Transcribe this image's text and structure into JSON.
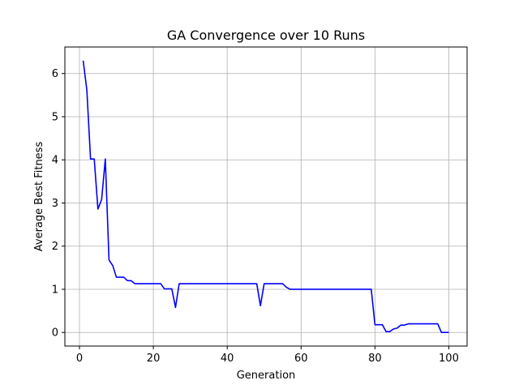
{
  "chart_data": {
    "type": "line",
    "title": "GA Convergence over 10 Runs",
    "xlabel": "Generation",
    "ylabel": "Average Best Fitness",
    "xlim": [
      -3.95,
      104.95
    ],
    "ylim": [
      -0.315,
      6.615
    ],
    "xticks": [
      0,
      20,
      40,
      60,
      80,
      100
    ],
    "yticks": [
      0,
      1,
      2,
      3,
      4,
      5,
      6
    ],
    "grid": true,
    "series": [
      {
        "color": "#0000ff",
        "x": [
          1,
          2,
          3,
          4,
          5,
          6,
          7,
          8,
          9,
          10,
          11,
          12,
          13,
          14,
          15,
          16,
          17,
          18,
          19,
          20,
          21,
          22,
          23,
          24,
          25,
          26,
          27,
          28,
          29,
          30,
          31,
          32,
          33,
          34,
          35,
          36,
          37,
          38,
          39,
          40,
          41,
          42,
          43,
          44,
          45,
          46,
          47,
          48,
          49,
          50,
          51,
          52,
          53,
          54,
          55,
          56,
          57,
          58,
          59,
          60,
          61,
          62,
          63,
          64,
          65,
          66,
          67,
          68,
          69,
          70,
          71,
          72,
          73,
          74,
          75,
          76,
          77,
          78,
          79,
          80,
          81,
          82,
          83,
          84,
          85,
          86,
          87,
          88,
          89,
          90,
          91,
          92,
          93,
          94,
          95,
          96,
          97,
          98,
          99,
          100
        ],
        "y": [
          6.3,
          5.62,
          4.02,
          4.02,
          2.86,
          3.08,
          4.02,
          1.68,
          1.55,
          1.28,
          1.28,
          1.28,
          1.2,
          1.2,
          1.13,
          1.13,
          1.13,
          1.13,
          1.13,
          1.13,
          1.13,
          1.13,
          1.01,
          1.01,
          1.01,
          0.58,
          1.13,
          1.13,
          1.13,
          1.13,
          1.13,
          1.13,
          1.13,
          1.13,
          1.13,
          1.13,
          1.13,
          1.13,
          1.13,
          1.13,
          1.13,
          1.13,
          1.13,
          1.13,
          1.13,
          1.13,
          1.13,
          1.13,
          0.62,
          1.13,
          1.13,
          1.13,
          1.13,
          1.13,
          1.13,
          1.05,
          1.0,
          1.0,
          1.0,
          1.0,
          1.0,
          1.0,
          1.0,
          1.0,
          1.0,
          1.0,
          1.0,
          1.0,
          1.0,
          1.0,
          1.0,
          1.0,
          1.0,
          1.0,
          1.0,
          1.0,
          1.0,
          1.0,
          1.0,
          0.18,
          0.18,
          0.18,
          0.02,
          0.02,
          0.08,
          0.1,
          0.17,
          0.17,
          0.2,
          0.2,
          0.2,
          0.2,
          0.2,
          0.2,
          0.2,
          0.2,
          0.2,
          0.0,
          0.0,
          0.0
        ]
      }
    ]
  }
}
